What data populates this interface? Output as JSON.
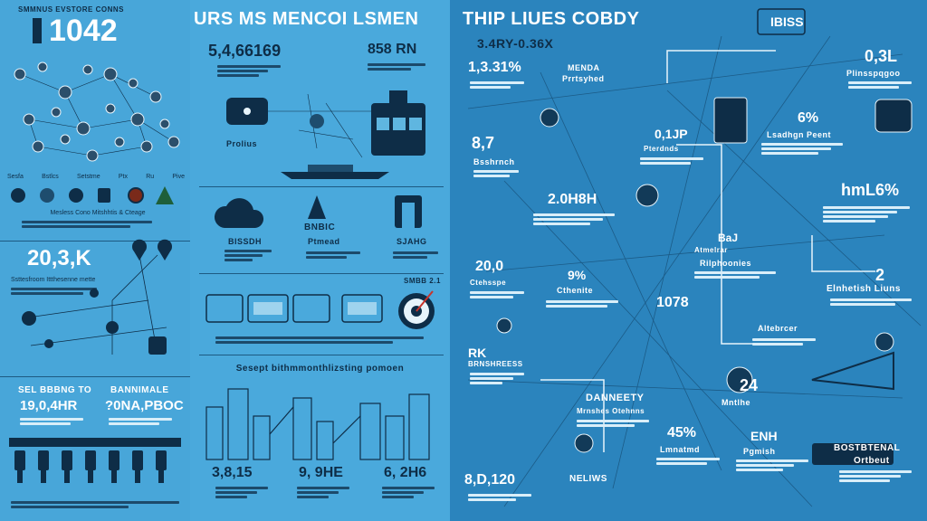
{
  "left": {
    "header_small": "SMMNUS EVSTORE CONNS",
    "header_number": "1042",
    "label_cluster": "",
    "row_labels": [
      "Sesfa",
      "Bstlcs",
      "Setstme",
      "Ptx",
      "Ru",
      "Pive"
    ],
    "para1": "Mesless Cono Mitshhtis & Cteage",
    "big2": "20,3,K",
    "para2": "Ssttesfroom Ittthesenne mette",
    "stat_a_title": "SEL BBBNG TO",
    "stat_a_value": "19,0,4HR",
    "stat_b_title": "BANNIMALE",
    "stat_b_value": "?0NA,PBOC"
  },
  "mid": {
    "title": "URS MS MENCOI LSMEN",
    "big1": "5,4,66169",
    "big1b": "858 RN",
    "label_router": "Prolius",
    "cloud_label": "BISSDH",
    "mid_label": "BNBIC",
    "mid_label2": "Ptmead",
    "right_label": "SJAHG",
    "strip_label": "SMBB 2.1",
    "subtitle": "Sesept bithmmonthlizsting pomoen",
    "stat1": "3,8,15",
    "stat2": "9, 9HE",
    "stat3": "6, 2H6"
  },
  "right": {
    "title": "THIP LIUES COBDY",
    "subtitle": "3.4RY-0.36X",
    "stat1": "1,3.31%",
    "stat1_label": "MENDA",
    "stat1_label2": "Prrtsyhed",
    "stat2": "8,7",
    "stat2_label": "Bsshrnch",
    "stat3": "2.0H8H",
    "stat4": "20,0",
    "stat4_label": "Ctehsspe",
    "stat5": "1078",
    "stat6": "9%",
    "stat6_label": "Cthenite",
    "big_top": "IBISS",
    "big_top2": "0,3L",
    "big_top2_label": "Plinsspqgoo",
    "pct": "6%",
    "pct_label": "Lsadhgn Peent",
    "pct2": "hmL6%",
    "stat_b": "2",
    "stat_b_label": "Elnhetish Liuns",
    "box_label": "Altebrcer",
    "box_label2": "Rilphoonies",
    "gauge_title": "DANNEETY",
    "gauge_sub": "Mrnshes Otehnns",
    "neliws": "NELIWS",
    "bottom_left": "8,D,120",
    "pct3": "45%",
    "pct3_label": "Lmnatmd",
    "num24": "24",
    "num24_label": "Mntlhe",
    "num_x": "ENH",
    "num_x_label": "Pgmish",
    "corner_title": "BOSTBTENAL",
    "corner_sub": "Ortbeut",
    "stat_rk": "RK",
    "stat_rk_label": "BRNSHREESS",
    "dpz": "0,1JP",
    "dpz_label": "Pterdnds",
    "ba": "BaJ",
    "ba_label": "Atmelrar"
  }
}
